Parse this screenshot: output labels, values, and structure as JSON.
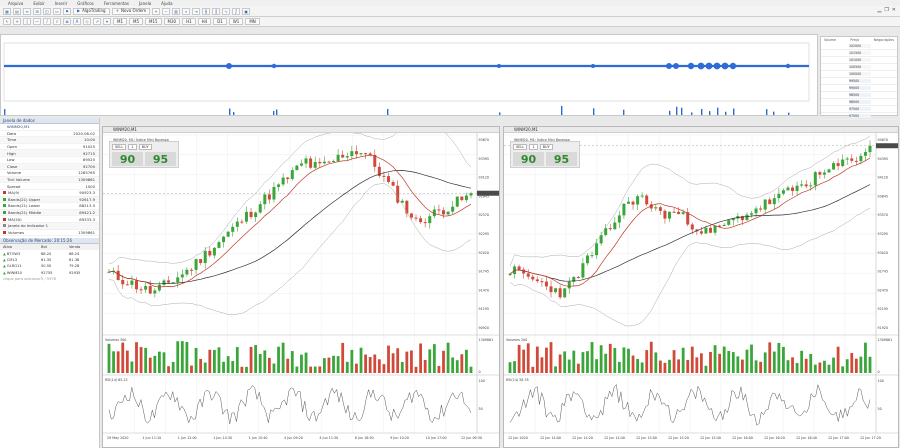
{
  "menu": [
    "Arquivo",
    "Exibir",
    "Inserir",
    "Gráficos",
    "Ferramentas",
    "Janela",
    "Ajuda"
  ],
  "toolbar": {
    "period_buttons": [
      "M1",
      "M5",
      "M15",
      "M30",
      "H1",
      "H4",
      "D1",
      "W1",
      "MN"
    ],
    "algotrading_label": "AlgoTrading",
    "new_order_label": "Nova Ordem"
  },
  "book": {
    "headers": [
      "Volume",
      "Preço",
      "Negociações"
    ],
    "price_levels": [
      "102000",
      "101500",
      "101000",
      "100500",
      "100000",
      "99500",
      "99000",
      "98500",
      "98000",
      "97500",
      "97000"
    ]
  },
  "market_watch": {
    "title": "Janela de dados",
    "symbol": "WINM20,M1",
    "rows": [
      {
        "label": "Data",
        "value": "2020.06.02"
      },
      {
        "label": "Time",
        "value": "10:00"
      },
      {
        "label": "Open",
        "value": "91025"
      },
      {
        "label": "High",
        "value": "92715"
      },
      {
        "label": "Low",
        "value": "89520"
      },
      {
        "label": "Close",
        "value": "92700"
      },
      {
        "label": "Volume",
        "value": "1285765"
      },
      {
        "label": "Tick Volume",
        "value": "1309861"
      },
      {
        "label": "Spread",
        "value": "1000"
      }
    ],
    "indicators": [
      {
        "label": "MA(9)",
        "value": "90923.3",
        "color": "#c0392b"
      },
      {
        "label": "Bands(21) Upper",
        "value": "92617.9",
        "color": "#3aa63a"
      },
      {
        "label": "Bands(21) Lower",
        "value": "88213.5",
        "color": "#3aa63a"
      },
      {
        "label": "Bands(21) Middle",
        "value": "89421.2",
        "color": "#3aa63a"
      },
      {
        "label": "MA(50)",
        "value": "89333.3",
        "color": "#c0392b"
      },
      {
        "label": "Janela do Indicador 1",
        "value": "",
        "color": "#888888"
      },
      {
        "label": "Volumes",
        "value": "1309861",
        "color": "#c0392b"
      }
    ]
  },
  "quotes": {
    "title": "Observação de Mercado: 20:15:26",
    "headers": [
      "Ativo",
      "Bid",
      "Venda"
    ],
    "rows": [
      {
        "symbol": "BTOW3",
        "bid": "68.20",
        "ask": "68.24"
      },
      {
        "symbol": "CIEL3",
        "bid": "61.35",
        "ask": "61.38"
      },
      {
        "symbol": "GLRO11",
        "bid": "50.50",
        "ask": "79.28"
      },
      {
        "symbol": "WINM20",
        "bid": "92755",
        "ask": "92935"
      }
    ],
    "add_label": "clique para adicionar",
    "count_label": "5 / 5978"
  },
  "chart_left": {
    "title": "WINM20,M1",
    "legend": "WINM20, M1: Índice Mini Bovespa",
    "trade_panel": {
      "side_sell": "SELL",
      "lot": "1",
      "side_buy": "BUY",
      "sell_price": "90",
      "buy_price": "95"
    },
    "volume_label": "Volumes 300",
    "osc_label": "RSI(14) 65.25",
    "y_ticks": [
      "93670",
      "93395",
      "93120",
      "92845",
      "92570",
      "92295",
      "92020",
      "91745",
      "91470",
      "91195",
      "90920"
    ],
    "x_ticks": [
      "29 May 2020",
      "1 Jun 11:10",
      "1 Jun 12:00",
      "1 Jun 14:30",
      "1 Jun 15:40",
      "4 Jun 09:20",
      "4 Jun 11:30",
      "8 Jun 16:50",
      "9 Jun 10:20",
      "10 Jun 17:00",
      "12 Jun 09:30"
    ],
    "volume_ticks": [
      "1309861",
      "0"
    ],
    "osc_ticks": [
      "100",
      "50"
    ]
  },
  "chart_right": {
    "title": "WINM20,M1",
    "legend": "WINM20, M1: Índice Mini Bovespa",
    "trade_panel": {
      "side_sell": "SELL",
      "lot": "1",
      "side_buy": "BUY",
      "sell_price": "90",
      "buy_price": "95"
    },
    "volume_label": "Volumes 200",
    "osc_label": "RSI(14) 58.78",
    "y_ticks": [
      "94670",
      "94395",
      "94120",
      "93845",
      "93570",
      "93295",
      "93020",
      "92745",
      "92470",
      "92195",
      "91920"
    ],
    "x_ticks": [
      "12 Jun 2020",
      "12 Jun 14:00",
      "12 Jun 14:20",
      "12 Jun 14:40",
      "12 Jun 15:00",
      "12 Jun 15:20",
      "12 Jun 15:40",
      "12 Jun 16:00",
      "12 Jun 16:20",
      "12 Jun 16:40",
      "12 Jun 17:00",
      "12 Jun 17:20"
    ],
    "volume_ticks": [
      "1309861",
      "0"
    ],
    "osc_ticks": [
      "100",
      "50"
    ]
  },
  "colors": {
    "bull": "#3aa63a",
    "bear": "#d04a3a",
    "ma_fast": "#c0392b",
    "ma_slow": "#333333",
    "tape": "#2f6bd6",
    "bands": "#aaaaaa"
  }
}
